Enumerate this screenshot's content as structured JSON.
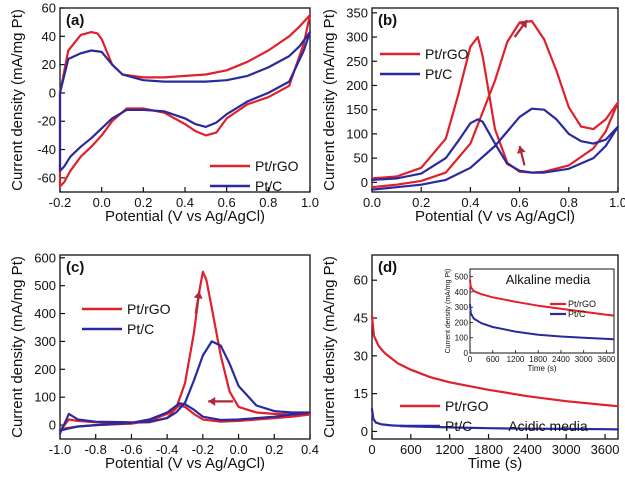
{
  "chart_data": [
    {
      "panel": "(a)",
      "type": "line",
      "xlabel": "Potential (V vs Ag/AgCl)",
      "ylabel": "Current density (mA/mg Pt)",
      "xlim": [
        -0.2,
        1.0
      ],
      "ylim": [
        -70,
        60
      ],
      "xticks": [
        "-0.2",
        "0.0",
        "0.2",
        "0.4",
        "0.6",
        "0.8",
        "1.0"
      ],
      "yticks": [
        "-60",
        "-40",
        "-20",
        "0",
        "20",
        "40",
        "60"
      ],
      "legend_position": "bottom-right",
      "series": [
        {
          "name": "Pt/rGO",
          "color": "#e0202a",
          "x": [
            -0.2,
            -0.16,
            -0.1,
            -0.05,
            -0.02,
            0.0,
            0.05,
            0.1,
            0.2,
            0.3,
            0.4,
            0.5,
            0.6,
            0.7,
            0.8,
            0.9,
            0.95,
            1.0,
            0.97,
            0.9,
            0.8,
            0.7,
            0.6,
            0.55,
            0.5,
            0.45,
            0.4,
            0.3,
            0.2,
            0.12,
            0.05,
            0.0,
            -0.05,
            -0.1,
            -0.15,
            -0.18,
            -0.2,
            -0.2
          ],
          "y": [
            0,
            30,
            41,
            43,
            42,
            38,
            20,
            13,
            11,
            11,
            12,
            13,
            16,
            22,
            30,
            40,
            47,
            55,
            35,
            5,
            -3,
            -8,
            -18,
            -28,
            -30,
            -27,
            -22,
            -14,
            -11,
            -11,
            -20,
            -30,
            -38,
            -45,
            -55,
            -63,
            -66,
            0
          ]
        },
        {
          "name": "Pt/C",
          "color": "#2a2a9e",
          "x": [
            -0.2,
            -0.16,
            -0.1,
            -0.05,
            0.0,
            0.05,
            0.1,
            0.2,
            0.3,
            0.4,
            0.5,
            0.6,
            0.7,
            0.8,
            0.9,
            0.95,
            1.0,
            0.97,
            0.9,
            0.8,
            0.7,
            0.6,
            0.55,
            0.5,
            0.45,
            0.4,
            0.3,
            0.2,
            0.12,
            0.05,
            0.0,
            -0.05,
            -0.1,
            -0.15,
            -0.18,
            -0.2,
            -0.2
          ],
          "y": [
            0,
            24,
            28,
            30,
            29,
            20,
            13,
            9,
            8,
            8,
            8,
            9,
            12,
            18,
            26,
            33,
            43,
            30,
            8,
            0,
            -6,
            -15,
            -21,
            -24,
            -22,
            -18,
            -13,
            -12,
            -12,
            -18,
            -25,
            -32,
            -38,
            -45,
            -52,
            -55,
            0
          ]
        }
      ]
    },
    {
      "panel": "(b)",
      "type": "line",
      "xlabel": "Potential (V vs Ag/AgCl)",
      "ylabel": "Current density (mA/mg Pt)",
      "xlim": [
        0.0,
        1.0
      ],
      "ylim": [
        -20,
        360
      ],
      "xticks": [
        "0.0",
        "0.2",
        "0.4",
        "0.6",
        "0.8",
        "1.0"
      ],
      "yticks": [
        "0",
        "50",
        "100",
        "150",
        "200",
        "250",
        "300",
        "350"
      ],
      "legend_position": "top-left",
      "series": [
        {
          "name": "Pt/rGO",
          "color": "#e0202a",
          "x": [
            0.0,
            0.1,
            0.2,
            0.3,
            0.4,
            0.5,
            0.55,
            0.6,
            0.65,
            0.7,
            0.75,
            0.8,
            0.85,
            0.9,
            0.95,
            1.0,
            0.95,
            0.9,
            0.8,
            0.7,
            0.65,
            0.6,
            0.55,
            0.5,
            0.45,
            0.43,
            0.4,
            0.35,
            0.3,
            0.2,
            0.1,
            0.0
          ],
          "y": [
            -10,
            -5,
            3,
            20,
            80,
            210,
            290,
            330,
            333,
            295,
            230,
            155,
            115,
            110,
            130,
            165,
            105,
            70,
            35,
            22,
            20,
            22,
            40,
            110,
            260,
            300,
            280,
            180,
            90,
            30,
            12,
            8
          ]
        },
        {
          "name": "Pt/C",
          "color": "#2a2a9e",
          "x": [
            0.0,
            0.1,
            0.2,
            0.3,
            0.4,
            0.5,
            0.55,
            0.6,
            0.65,
            0.7,
            0.75,
            0.8,
            0.85,
            0.9,
            0.95,
            1.0,
            0.95,
            0.9,
            0.8,
            0.7,
            0.65,
            0.6,
            0.55,
            0.5,
            0.45,
            0.43,
            0.4,
            0.35,
            0.3,
            0.2,
            0.1,
            0.0
          ],
          "y": [
            -15,
            -10,
            -5,
            5,
            30,
            75,
            105,
            135,
            152,
            150,
            130,
            100,
            85,
            80,
            88,
            115,
            75,
            50,
            28,
            20,
            20,
            24,
            38,
            80,
            125,
            130,
            122,
            85,
            50,
            18,
            8,
            5
          ]
        }
      ]
    },
    {
      "panel": "(c)",
      "type": "line",
      "xlabel": "Potential (V vs Ag/AgCl)",
      "ylabel": "Current density (mA/mg Pt)",
      "xlim": [
        -1.0,
        0.4
      ],
      "ylim": [
        -50,
        610
      ],
      "xticks": [
        "-1.0",
        "-0.8",
        "-0.6",
        "-0.4",
        "-0.2",
        "0.0",
        "0.2",
        "0.4"
      ],
      "yticks": [
        "0",
        "100",
        "200",
        "300",
        "400",
        "500",
        "600"
      ],
      "legend_position": "top-left",
      "series": [
        {
          "name": "Pt/rGO",
          "color": "#e0202a",
          "x": [
            -1.0,
            -0.95,
            -0.9,
            -0.8,
            -0.6,
            -0.5,
            -0.4,
            -0.35,
            -0.3,
            -0.25,
            -0.22,
            -0.2,
            -0.18,
            -0.15,
            -0.1,
            -0.05,
            0.0,
            0.1,
            0.2,
            0.3,
            0.4,
            0.3,
            0.2,
            0.1,
            0.0,
            -0.1,
            -0.2,
            -0.25,
            -0.3,
            -0.33,
            -0.4,
            -0.5,
            -0.6,
            -0.8,
            -0.9,
            -0.95,
            -1.0
          ],
          "y": [
            -20,
            20,
            15,
            10,
            8,
            10,
            25,
            60,
            150,
            330,
            480,
            550,
            520,
            420,
            250,
            120,
            65,
            45,
            40,
            38,
            38,
            30,
            25,
            20,
            15,
            12,
            20,
            40,
            65,
            70,
            40,
            15,
            5,
            0,
            -5,
            -10,
            -15
          ]
        },
        {
          "name": "Pt/C",
          "color": "#2a2a9e",
          "x": [
            -1.0,
            -0.95,
            -0.9,
            -0.8,
            -0.6,
            -0.5,
            -0.4,
            -0.35,
            -0.3,
            -0.25,
            -0.2,
            -0.15,
            -0.1,
            -0.05,
            0.0,
            0.1,
            0.2,
            0.3,
            0.4,
            0.3,
            0.2,
            0.1,
            0.0,
            -0.1,
            -0.2,
            -0.25,
            -0.3,
            -0.33,
            -0.4,
            -0.5,
            -0.6,
            -0.8,
            -0.9,
            -0.95,
            -1.0
          ],
          "y": [
            -30,
            40,
            20,
            12,
            10,
            12,
            25,
            45,
            80,
            160,
            250,
            300,
            285,
            220,
            140,
            70,
            50,
            45,
            45,
            38,
            30,
            25,
            20,
            18,
            30,
            55,
            75,
            78,
            45,
            20,
            8,
            0,
            -5,
            -12,
            -20
          ]
        }
      ]
    },
    {
      "panel": "(d)",
      "type": "line",
      "xlabel": "Time (s)",
      "ylabel": "Current density (mA/mg Pt)",
      "xlim": [
        0,
        3800
      ],
      "ylim": [
        -3,
        70
      ],
      "xticks": [
        "0",
        "600",
        "1200",
        "1800",
        "2400",
        "3000",
        "3600"
      ],
      "yticks": [
        "0",
        "15",
        "30",
        "45",
        "60"
      ],
      "legend_position": "bottom-left",
      "annotation": "Acidic media",
      "series": [
        {
          "name": "Pt/rGO",
          "color": "#e0202a",
          "x": [
            0,
            30,
            100,
            200,
            400,
            600,
            900,
            1200,
            1800,
            2400,
            3000,
            3600,
            3800
          ],
          "y": [
            46,
            38,
            34,
            31,
            27,
            24.5,
            21.5,
            19.5,
            16.5,
            14,
            12,
            10.5,
            10
          ]
        },
        {
          "name": "Pt/C",
          "color": "#2a2a9e",
          "x": [
            0,
            20,
            60,
            150,
            300,
            600,
            1200,
            1800,
            2400,
            3000,
            3600,
            3800
          ],
          "y": [
            9,
            5,
            3.5,
            2.8,
            2.4,
            2.0,
            1.6,
            1.3,
            1.1,
            1.0,
            0.9,
            0.8
          ]
        }
      ]
    },
    {
      "panel": "(d) inset",
      "type": "line",
      "title": "Alkaline media",
      "xlabel": "Time (s)",
      "ylabel": "Current density (mA/mg Pt)",
      "xlim": [
        0,
        3800
      ],
      "ylim": [
        0,
        550
      ],
      "xticks": [
        "0",
        "600",
        "1200",
        "1800",
        "2400",
        "3000",
        "3600"
      ],
      "yticks": [
        "0",
        "100",
        "200",
        "300",
        "400",
        "500"
      ],
      "legend_position": "middle-right",
      "series": [
        {
          "name": "Pt/rGO",
          "color": "#e0202a",
          "x": [
            0,
            20,
            100,
            300,
            600,
            1200,
            1800,
            2400,
            3000,
            3600,
            3800
          ],
          "y": [
            480,
            430,
            405,
            385,
            365,
            335,
            310,
            290,
            270,
            250,
            245
          ]
        },
        {
          "name": "Pt/C",
          "color": "#2a2a9e",
          "x": [
            0,
            20,
            100,
            300,
            600,
            1200,
            1800,
            2400,
            3000,
            3600,
            3800
          ],
          "y": [
            320,
            260,
            225,
            195,
            170,
            140,
            120,
            108,
            100,
            92,
            90
          ]
        }
      ]
    }
  ]
}
